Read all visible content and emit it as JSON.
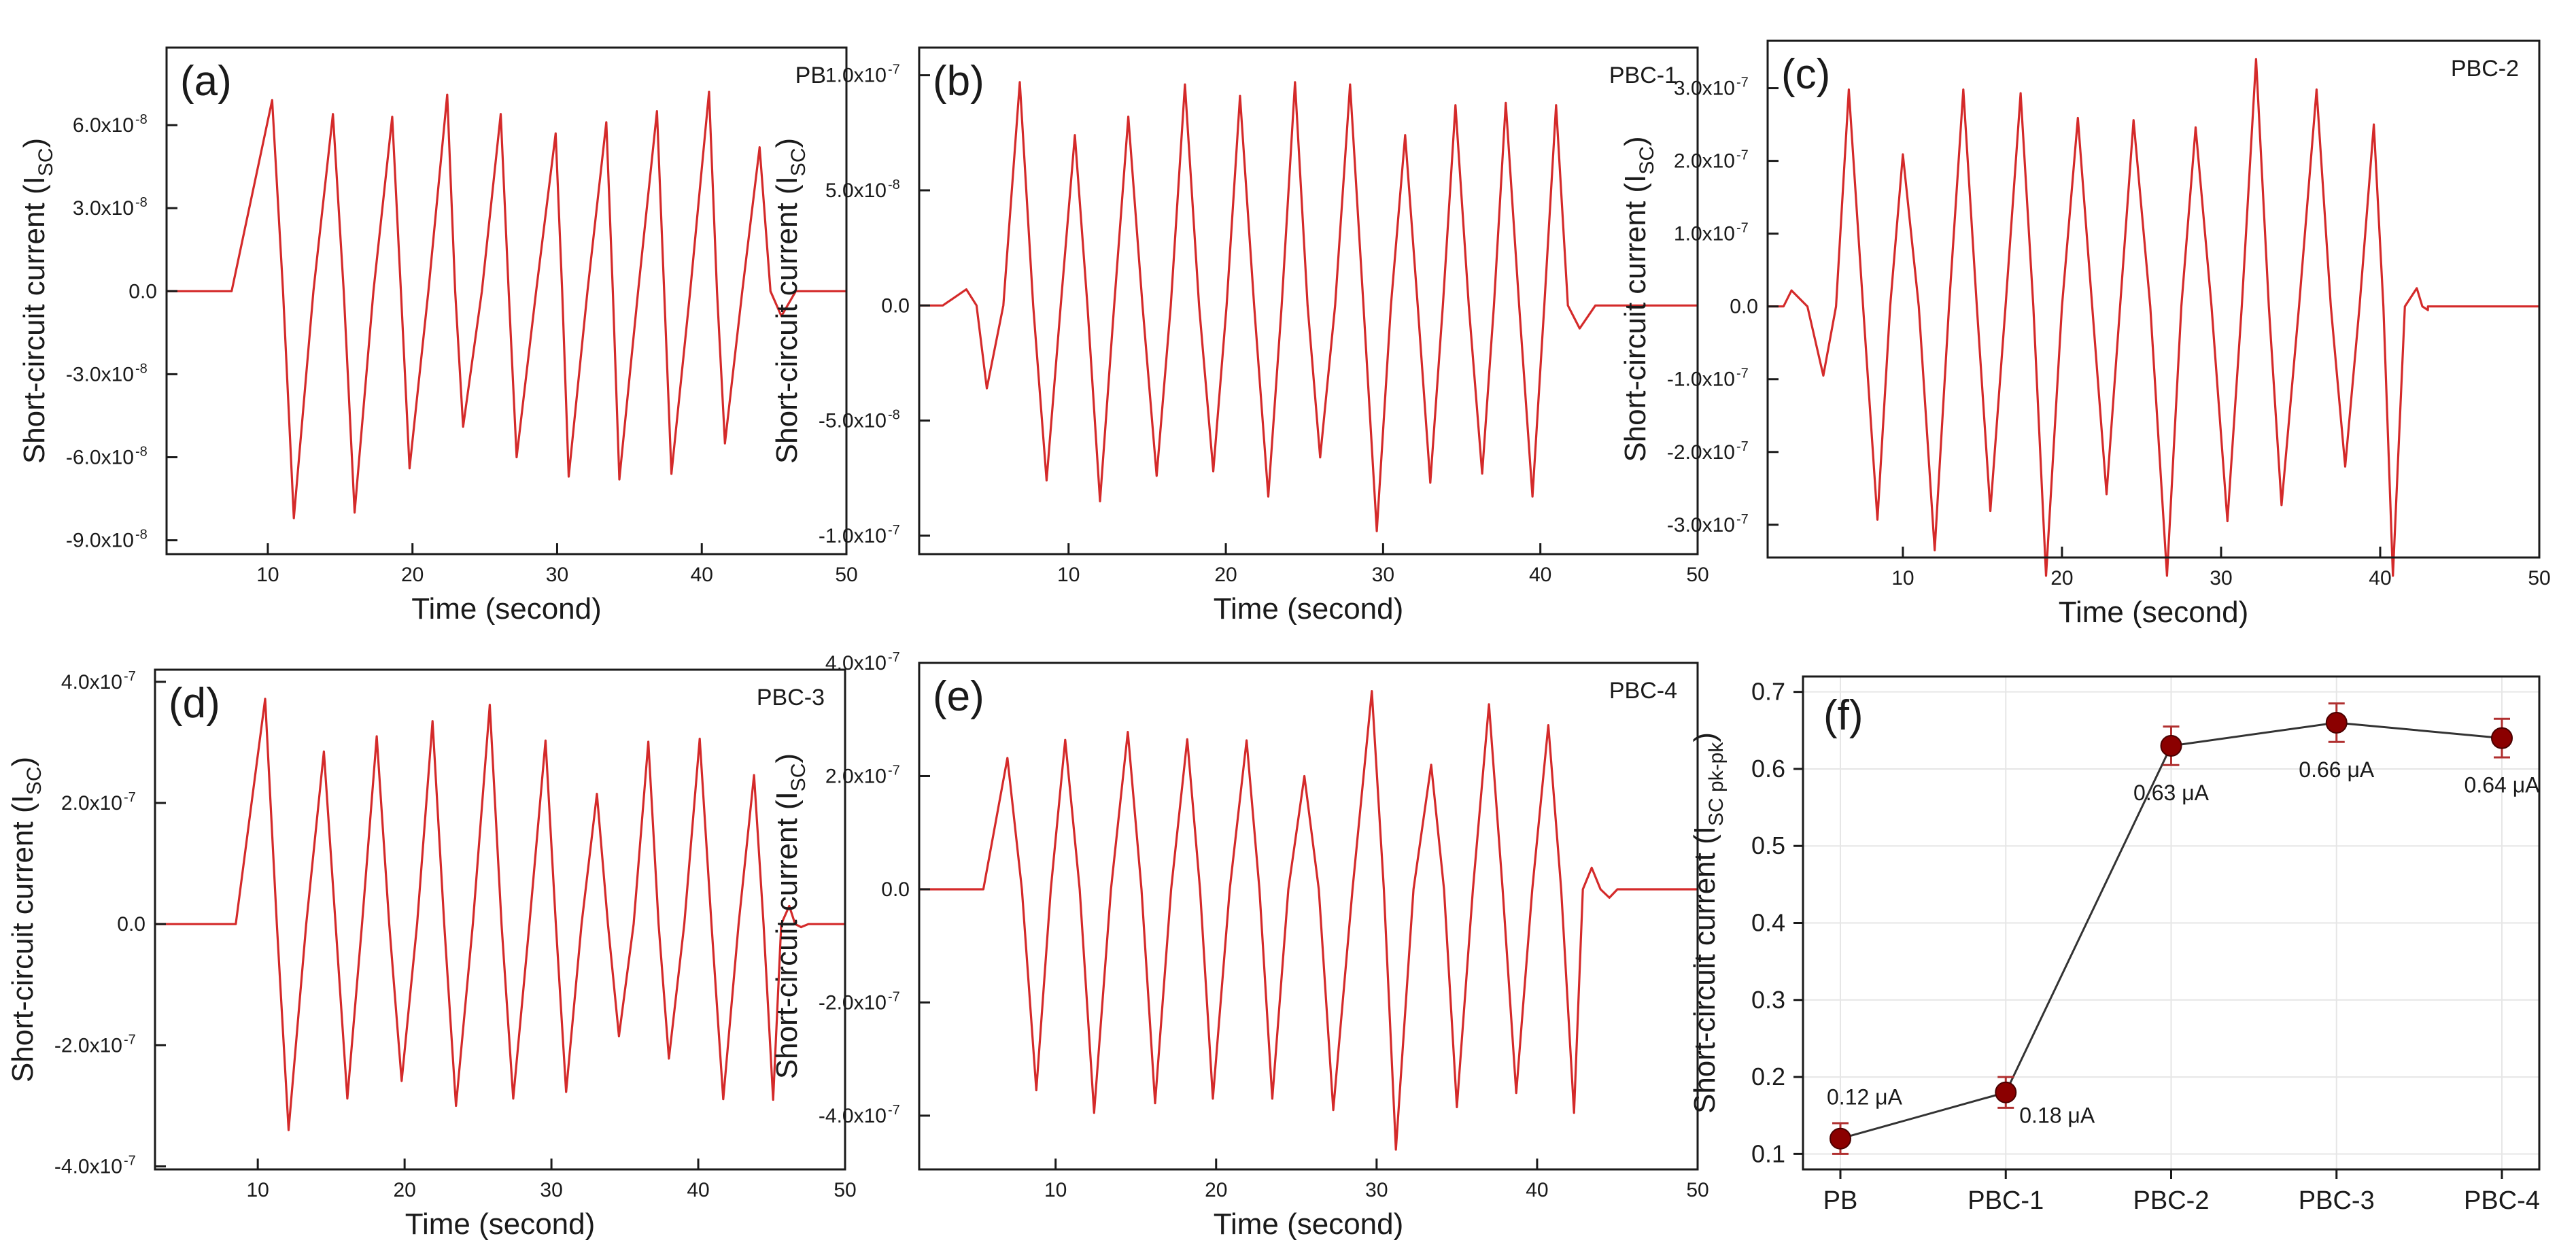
{
  "colors": {
    "trace": "#d42a2a",
    "marker": "#8b0000",
    "errorbar": "#b03030",
    "line": "#333333",
    "axis": "#1a1a1a",
    "grid": "#e6e6e6"
  },
  "chart_data": [
    {
      "id": "a",
      "type": "line",
      "panel_label": "(a)",
      "sample_label": "PB",
      "xlabel": "Time (second)",
      "ylabel": "Short-circuit current (I",
      "ylabel_sub": "SC",
      "ylabel_close": ")",
      "xlim": [
        3,
        50
      ],
      "ylim": [
        -0.095,
        0.088
      ],
      "xticks": [
        10,
        20,
        30,
        40,
        50
      ],
      "xtick_labels": [
        "10",
        "20",
        "30",
        "40",
        "50"
      ],
      "yticks": [
        -0.09,
        -0.06,
        -0.03,
        0,
        0.03,
        0.06
      ],
      "ytick_labels": [
        "-9.0x10",
        "-6.0x10",
        "-3.0x10",
        "0.0",
        "3.0x10",
        "6.0x10"
      ],
      "ytick_exps": [
        "-8",
        "-8",
        "-8",
        "",
        "-8",
        "-8"
      ],
      "value_unit": "x10^-6 (original labels shown as x10^-8)",
      "signal": {
        "start": 7.5,
        "end": 46.5,
        "peaks": [
          [
            10.3,
            0.069
          ],
          [
            14.5,
            0.064
          ],
          [
            18.6,
            0.063
          ],
          [
            22.4,
            0.071
          ],
          [
            26.1,
            0.064
          ],
          [
            29.9,
            0.057
          ],
          [
            33.4,
            0.061
          ],
          [
            36.9,
            0.065
          ],
          [
            40.5,
            0.072
          ],
          [
            44.0,
            0.052
          ]
        ],
        "troughs": [
          [
            11.8,
            -0.082
          ],
          [
            16.0,
            -0.08
          ],
          [
            19.8,
            -0.064
          ],
          [
            23.5,
            -0.049
          ],
          [
            27.2,
            -0.06
          ],
          [
            30.8,
            -0.067
          ],
          [
            34.3,
            -0.068
          ],
          [
            37.9,
            -0.066
          ],
          [
            41.6,
            -0.055
          ],
          [
            45.5,
            -0.009
          ]
        ]
      }
    },
    {
      "id": "b",
      "type": "line",
      "panel_label": "(b)",
      "sample_label": "PBC-1",
      "xlabel": "Time (second)",
      "ylabel": "Short-circuit current (I",
      "ylabel_sub": "SC",
      "ylabel_close": ")",
      "xlim": [
        0.5,
        50
      ],
      "ylim": [
        -1.08,
        1.12
      ],
      "xticks": [
        10,
        20,
        30,
        40,
        50
      ],
      "xtick_labels": [
        "10",
        "20",
        "30",
        "40",
        "50"
      ],
      "yticks": [
        -1.0,
        -0.5,
        0,
        0.5,
        1.0
      ],
      "ytick_labels": [
        "-1.0x10",
        "-5.0x10",
        "0.0",
        "5.0x10",
        "1.0x10"
      ],
      "ytick_exps": [
        "-7",
        "-8",
        "",
        "-8",
        "-7"
      ],
      "value_unit": "x10^-7",
      "signal": {
        "start": 2.0,
        "end": 43.5,
        "peaks": [
          [
            3.5,
            0.07
          ],
          [
            6.9,
            0.97
          ],
          [
            10.4,
            0.74
          ],
          [
            13.8,
            0.82
          ],
          [
            17.4,
            0.96
          ],
          [
            20.9,
            0.91
          ],
          [
            24.4,
            0.97
          ],
          [
            27.9,
            0.96
          ],
          [
            31.4,
            0.74
          ],
          [
            34.6,
            0.87
          ],
          [
            37.8,
            0.88
          ],
          [
            41.0,
            0.87
          ]
        ],
        "troughs": [
          [
            4.8,
            -0.36
          ],
          [
            8.6,
            -0.76
          ],
          [
            12.0,
            -0.85
          ],
          [
            15.6,
            -0.74
          ],
          [
            19.2,
            -0.72
          ],
          [
            22.7,
            -0.83
          ],
          [
            26.0,
            -0.66
          ],
          [
            29.6,
            -0.98
          ],
          [
            33.0,
            -0.77
          ],
          [
            36.3,
            -0.73
          ],
          [
            39.5,
            -0.83
          ],
          [
            42.5,
            -0.1
          ]
        ]
      }
    },
    {
      "id": "c",
      "type": "line",
      "panel_label": "(c)",
      "sample_label": "PBC-2",
      "xlabel": "Time (second)",
      "ylabel": "Short-circuit current (I",
      "ylabel_sub": "SC",
      "ylabel_close": ")",
      "xlim": [
        1.5,
        50
      ],
      "ylim": [
        -3.45,
        3.65
      ],
      "xticks": [
        10,
        20,
        30,
        40,
        50
      ],
      "xtick_labels": [
        "10",
        "20",
        "30",
        "40",
        "50"
      ],
      "yticks": [
        -3.0,
        -2.0,
        -1.0,
        0,
        1.0,
        2.0,
        3.0
      ],
      "ytick_labels": [
        "-3.0x10",
        "-2.0x10",
        "-1.0x10",
        "0.0",
        "1.0x10",
        "2.0x10",
        "3.0x10"
      ],
      "ytick_exps": [
        "-7",
        "-7",
        "-7",
        "",
        "-7",
        "-7",
        "-7"
      ],
      "value_unit": "x10^-7",
      "signal": {
        "start": 2.5,
        "end": 43.0,
        "peaks": [
          [
            3.0,
            0.22
          ],
          [
            6.6,
            2.98
          ],
          [
            10.0,
            2.09
          ],
          [
            13.8,
            2.98
          ],
          [
            17.4,
            2.93
          ],
          [
            21.0,
            2.59
          ],
          [
            24.5,
            2.56
          ],
          [
            28.4,
            2.46
          ],
          [
            32.2,
            3.4
          ],
          [
            36.0,
            2.98
          ],
          [
            39.6,
            2.5
          ],
          [
            42.3,
            0.25
          ]
        ],
        "troughs": [
          [
            5.0,
            -0.95
          ],
          [
            8.4,
            -2.93
          ],
          [
            12.0,
            -3.35
          ],
          [
            15.5,
            -2.81
          ],
          [
            19.0,
            -3.7
          ],
          [
            22.8,
            -2.58
          ],
          [
            26.6,
            -3.7
          ],
          [
            30.4,
            -2.95
          ],
          [
            33.8,
            -2.73
          ],
          [
            37.8,
            -2.2
          ],
          [
            40.8,
            -3.7
          ],
          [
            43.0,
            -0.05
          ]
        ]
      }
    },
    {
      "id": "d",
      "type": "line",
      "panel_label": "(d)",
      "sample_label": "PBC-3",
      "xlabel": "Time (second)",
      "ylabel": "Short-circuit current (I",
      "ylabel_sub": "SC",
      "ylabel_close": ")",
      "xlim": [
        3,
        50
      ],
      "ylim": [
        -4.05,
        4.2
      ],
      "xticks": [
        10,
        20,
        30,
        40,
        50
      ],
      "xtick_labels": [
        "10",
        "20",
        "30",
        "40",
        "50"
      ],
      "yticks": [
        -4.0,
        -2.0,
        0,
        2.0,
        4.0
      ],
      "ytick_labels": [
        "-4.0x10",
        "-2.0x10",
        "0.0",
        "2.0x10",
        "4.0x10"
      ],
      "ytick_exps": [
        "-7",
        "-7",
        "",
        "-7",
        "-7"
      ],
      "value_unit": "x10^-7",
      "signal": {
        "start": 8.5,
        "end": 47.5,
        "peaks": [
          [
            10.5,
            3.72
          ],
          [
            14.5,
            2.85
          ],
          [
            18.1,
            3.1
          ],
          [
            21.9,
            3.35
          ],
          [
            25.8,
            3.62
          ],
          [
            29.6,
            3.03
          ],
          [
            33.1,
            2.15
          ],
          [
            36.6,
            3.01
          ],
          [
            40.1,
            3.06
          ],
          [
            43.8,
            2.46
          ],
          [
            46.2,
            0.3
          ]
        ],
        "troughs": [
          [
            12.1,
            -3.4
          ],
          [
            16.1,
            -2.88
          ],
          [
            19.8,
            -2.59
          ],
          [
            23.5,
            -3.0
          ],
          [
            27.4,
            -2.88
          ],
          [
            31.0,
            -2.77
          ],
          [
            34.6,
            -1.85
          ],
          [
            38.0,
            -2.22
          ],
          [
            41.7,
            -2.89
          ],
          [
            45.1,
            -2.9
          ],
          [
            47.0,
            -0.05
          ]
        ]
      }
    },
    {
      "id": "e",
      "type": "line",
      "panel_label": "(e)",
      "sample_label": "PBC-4",
      "xlabel": "Time (second)",
      "ylabel": "Short-circuit current (I",
      "ylabel_sub": "SC",
      "ylabel_close": ")",
      "xlim": [
        1.5,
        50
      ],
      "ylim": [
        -4.95,
        4.0
      ],
      "xticks": [
        10,
        20,
        30,
        40,
        50
      ],
      "xtick_labels": [
        "10",
        "20",
        "30",
        "40",
        "50"
      ],
      "yticks": [
        -4.0,
        -2.0,
        0,
        2.0,
        4.0
      ],
      "ytick_labels": [
        "-4.0x10",
        "-2.0x10",
        "0.0",
        "2.0x10",
        "4.0x10"
      ],
      "ytick_exps": [
        "-7",
        "-7",
        "",
        "-7",
        "-7"
      ],
      "value_unit": "x10^-7",
      "signal": {
        "start": 5.5,
        "end": 45.0,
        "peaks": [
          [
            7.0,
            2.32
          ],
          [
            10.6,
            2.64
          ],
          [
            14.5,
            2.78
          ],
          [
            18.2,
            2.65
          ],
          [
            21.9,
            2.63
          ],
          [
            25.5,
            2.0
          ],
          [
            29.7,
            3.5
          ],
          [
            33.4,
            2.2
          ],
          [
            37.0,
            3.27
          ],
          [
            40.7,
            2.9
          ],
          [
            43.4,
            0.38
          ]
        ],
        "troughs": [
          [
            8.8,
            -3.55
          ],
          [
            12.4,
            -3.95
          ],
          [
            16.2,
            -3.78
          ],
          [
            19.8,
            -3.7
          ],
          [
            23.5,
            -3.7
          ],
          [
            27.3,
            -3.9
          ],
          [
            31.2,
            -4.6
          ],
          [
            35.0,
            -3.85
          ],
          [
            38.7,
            -3.6
          ],
          [
            42.3,
            -3.95
          ],
          [
            44.5,
            -0.15
          ]
        ]
      }
    },
    {
      "id": "f",
      "type": "scatter",
      "panel_label": "(f)",
      "xlabel": "",
      "ylabel": "Short-circuit current (I",
      "ylabel_sub": "SC pk-pk",
      "ylabel_close": ")",
      "categories": [
        "PB",
        "PBC-1",
        "PBC-2",
        "PBC-3",
        "PBC-4"
      ],
      "values": [
        0.12,
        0.18,
        0.63,
        0.66,
        0.64
      ],
      "errors": [
        0.02,
        0.02,
        0.025,
        0.025,
        0.025
      ],
      "point_labels": [
        "0.12 μA",
        "0.18 μA",
        "0.63 μA",
        "0.66 μA",
        "0.64 μA"
      ],
      "ylim": [
        0.08,
        0.72
      ],
      "yticks": [
        0.1,
        0.2,
        0.3,
        0.4,
        0.5,
        0.6,
        0.7
      ],
      "ytick_labels": [
        "0.1",
        "0.2",
        "0.3",
        "0.4",
        "0.5",
        "0.6",
        "0.7"
      ],
      "grid": true
    }
  ]
}
